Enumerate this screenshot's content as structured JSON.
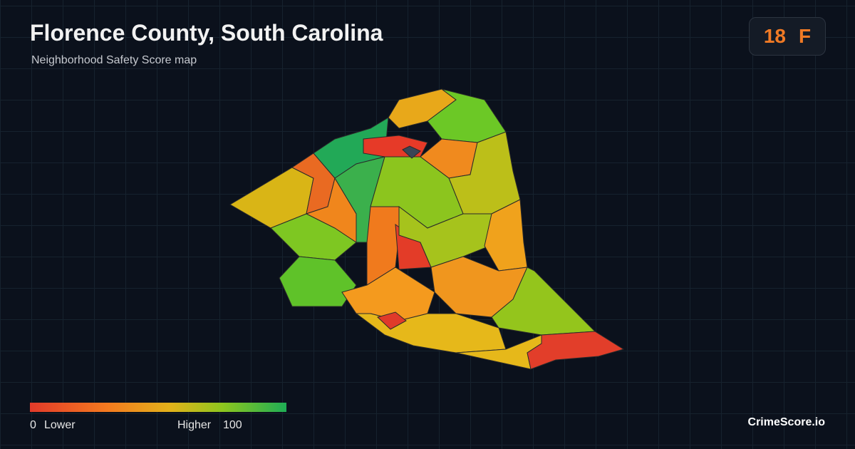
{
  "header": {
    "title": "Florence County, South Carolina",
    "subtitle": "Neighborhood Safety Score map"
  },
  "badge": {
    "score": 18,
    "grade": "F"
  },
  "legend": {
    "min_label": 0,
    "low_label": "Lower",
    "high_label": "Higher",
    "max_label": 100
  },
  "footer": {
    "brand": "CrimeScore.io"
  }
}
